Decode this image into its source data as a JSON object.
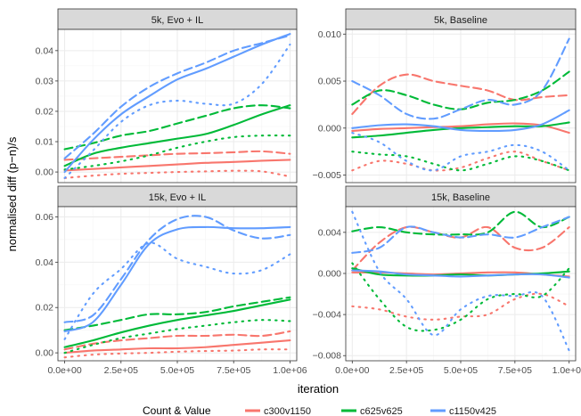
{
  "chart_data": {
    "type": "line",
    "xlabel": "iteration",
    "ylabel": "normalised diff (p−n)/s",
    "xlim": [
      -30000,
      1030000
    ],
    "x_ticks": [
      0,
      250000,
      500000,
      750000,
      1000000
    ],
    "x_tick_labels": [
      "0.0e+00",
      "2.5e+05",
      "5.0e+05",
      "7.5e+05",
      "1.0e+06"
    ],
    "x": [
      0,
      125000,
      250000,
      375000,
      500000,
      625000,
      750000,
      875000,
      1000000
    ],
    "legend": {
      "title": "Count & Value",
      "position": "bottom",
      "entries": [
        {
          "label": "c300v1150",
          "color": "#F8766D"
        },
        {
          "label": "c625v625",
          "color": "#00BA38"
        },
        {
          "label": "c1150v425",
          "color": "#619CFF"
        }
      ]
    },
    "line_styles": {
      "solid": "",
      "dashed": "9 5",
      "dotted": "1.5 6"
    },
    "panels": [
      {
        "title": "5k, Evo + IL",
        "ylim": [
          -0.0035,
          0.047
        ],
        "y_ticks": [
          0,
          0.01,
          0.02,
          0.03,
          0.04
        ],
        "y_tick_labels": [
          "0.00",
          "0.01",
          "0.02",
          "0.03",
          "0.04"
        ],
        "series": [
          {
            "group": "c300v1150",
            "style": "solid",
            "values": [
              0.0005,
              0.001,
              0.0015,
              0.002,
              0.0025,
              0.003,
              0.0033,
              0.0037,
              0.004
            ]
          },
          {
            "group": "c300v1150",
            "style": "dashed",
            "values": [
              0.004,
              0.0045,
              0.005,
              0.0055,
              0.006,
              0.0062,
              0.0065,
              0.0068,
              0.006
            ]
          },
          {
            "group": "c300v1150",
            "style": "dotted",
            "values": [
              -0.002,
              -0.0012,
              -0.0006,
              -0.0003,
              0.0,
              0.0002,
              0.0004,
              0.0002,
              -0.0015
            ]
          },
          {
            "group": "c625v625",
            "style": "solid",
            "values": [
              0.002,
              0.006,
              0.008,
              0.0095,
              0.011,
              0.0125,
              0.0155,
              0.019,
              0.022
            ]
          },
          {
            "group": "c625v625",
            "style": "dashed",
            "values": [
              0.0075,
              0.0095,
              0.012,
              0.0135,
              0.016,
              0.0185,
              0.021,
              0.022,
              0.021
            ]
          },
          {
            "group": "c625v625",
            "style": "dotted",
            "values": [
              0.0008,
              0.002,
              0.0035,
              0.0055,
              0.008,
              0.01,
              0.0115,
              0.012,
              0.012
            ]
          },
          {
            "group": "c1150v425",
            "style": "solid",
            "values": [
              0.0,
              0.0105,
              0.019,
              0.025,
              0.0305,
              0.034,
              0.038,
              0.042,
              0.0455
            ]
          },
          {
            "group": "c1150v425",
            "style": "dashed",
            "values": [
              0.0045,
              0.0125,
              0.0215,
              0.028,
              0.0325,
              0.036,
              0.04,
              0.0425,
              0.045
            ]
          },
          {
            "group": "c1150v425",
            "style": "dotted",
            "values": [
              -0.002,
              0.007,
              0.0165,
              0.022,
              0.0235,
              0.0225,
              0.0225,
              0.029,
              0.042
            ]
          }
        ]
      },
      {
        "title": "5k, Baseline",
        "ylim": [
          -0.0058,
          0.0105
        ],
        "y_ticks": [
          -0.005,
          0,
          0.005,
          0.01
        ],
        "y_tick_labels": [
          "−0.005",
          "0.000",
          "0.005",
          "0.010"
        ],
        "series": [
          {
            "group": "c300v1150",
            "style": "solid",
            "values": [
              -0.0003,
              -0.0001,
              0.0,
              0.0001,
              0.0002,
              0.0004,
              0.0005,
              0.0003,
              -0.0005
            ]
          },
          {
            "group": "c300v1150",
            "style": "dashed",
            "values": [
              0.0015,
              0.0045,
              0.0057,
              0.005,
              0.0045,
              0.004,
              0.003,
              0.0033,
              0.0035
            ]
          },
          {
            "group": "c300v1150",
            "style": "dotted",
            "values": [
              -0.0045,
              -0.0035,
              -0.0038,
              -0.0045,
              -0.0042,
              -0.0032,
              -0.0025,
              -0.0035,
              -0.0045
            ]
          },
          {
            "group": "c625v625",
            "style": "solid",
            "values": [
              -0.001,
              -0.0008,
              -0.0005,
              -0.0002,
              0.0,
              0.0001,
              0.0002,
              0.0002,
              0.0006
            ]
          },
          {
            "group": "c625v625",
            "style": "dashed",
            "values": [
              0.0025,
              0.004,
              0.0035,
              0.0025,
              0.002,
              0.0027,
              0.003,
              0.004,
              0.006
            ]
          },
          {
            "group": "c625v625",
            "style": "dotted",
            "values": [
              -0.0025,
              -0.0028,
              -0.003,
              -0.0038,
              -0.0045,
              -0.0038,
              -0.003,
              -0.0035,
              -0.0045
            ]
          },
          {
            "group": "c1150v425",
            "style": "solid",
            "values": [
              0.0,
              0.0003,
              0.0004,
              0.0002,
              -0.0002,
              -0.0003,
              -0.0002,
              0.0004,
              0.0019
            ]
          },
          {
            "group": "c1150v425",
            "style": "dashed",
            "values": [
              0.005,
              0.0035,
              0.0015,
              0.001,
              0.002,
              0.003,
              0.0025,
              0.004,
              0.0095
            ]
          },
          {
            "group": "c1150v425",
            "style": "dotted",
            "values": [
              -0.0005,
              -0.0015,
              -0.0035,
              -0.0045,
              -0.003,
              -0.0025,
              -0.0018,
              -0.0025,
              -0.0045
            ]
          }
        ]
      },
      {
        "title": "15k, Evo + IL",
        "ylim": [
          -0.0035,
          0.0645
        ],
        "y_ticks": [
          0,
          0.02,
          0.04,
          0.06
        ],
        "y_tick_labels": [
          "0.00",
          "0.02",
          "0.04",
          "0.06"
        ],
        "series": [
          {
            "group": "c300v1150",
            "style": "solid",
            "values": [
              0.0,
              0.001,
              0.0015,
              0.002,
              0.002,
              0.0025,
              0.0035,
              0.0045,
              0.0055
            ]
          },
          {
            "group": "c300v1150",
            "style": "dashed",
            "values": [
              0.0015,
              0.004,
              0.0055,
              0.0065,
              0.0075,
              0.0075,
              0.008,
              0.0075,
              0.0095
            ]
          },
          {
            "group": "c300v1150",
            "style": "dotted",
            "values": [
              -0.002,
              -0.0008,
              -0.0003,
              0.0,
              0.0005,
              0.0008,
              0.001,
              0.0015,
              0.0015
            ]
          },
          {
            "group": "c625v625",
            "style": "solid",
            "values": [
              0.0025,
              0.0055,
              0.009,
              0.012,
              0.0145,
              0.0165,
              0.0185,
              0.021,
              0.0235
            ]
          },
          {
            "group": "c625v625",
            "style": "dashed",
            "values": [
              0.01,
              0.012,
              0.0145,
              0.017,
              0.017,
              0.018,
              0.0205,
              0.0225,
              0.0245
            ]
          },
          {
            "group": "c625v625",
            "style": "dotted",
            "values": [
              0.0,
              0.0035,
              0.0065,
              0.0085,
              0.0105,
              0.012,
              0.0135,
              0.0145,
              0.014
            ]
          },
          {
            "group": "c1150v425",
            "style": "solid",
            "values": [
              0.0095,
              0.0135,
              0.03,
              0.048,
              0.0545,
              0.0555,
              0.055,
              0.055,
              0.0555
            ]
          },
          {
            "group": "c1150v425",
            "style": "dashed",
            "values": [
              0.0135,
              0.0165,
              0.0325,
              0.05,
              0.059,
              0.06,
              0.054,
              0.0505,
              0.052
            ]
          },
          {
            "group": "c1150v425",
            "style": "dotted",
            "values": [
              0.006,
              0.026,
              0.037,
              0.0485,
              0.0415,
              0.038,
              0.035,
              0.0365,
              0.0435
            ]
          }
        ]
      },
      {
        "title": "15k, Baseline",
        "ylim": [
          -0.0085,
          0.0065
        ],
        "y_ticks": [
          -0.008,
          -0.004,
          0,
          0.004
        ],
        "y_tick_labels": [
          "−0.008",
          "−0.004",
          "0.000",
          "0.004"
        ],
        "series": [
          {
            "group": "c300v1150",
            "style": "solid",
            "values": [
              0.0001,
              0.0001,
              0.0,
              -0.0001,
              0.0,
              0.0001,
              0.0001,
              -0.0001,
              -0.0003
            ]
          },
          {
            "group": "c300v1150",
            "style": "dashed",
            "values": [
              0.0003,
              0.003,
              0.0045,
              0.004,
              0.0035,
              0.0045,
              0.0025,
              0.0025,
              0.0045
            ]
          },
          {
            "group": "c300v1150",
            "style": "dotted",
            "values": [
              -0.0032,
              -0.0035,
              -0.0042,
              -0.0045,
              -0.0042,
              -0.004,
              -0.0025,
              -0.002,
              -0.0032
            ]
          },
          {
            "group": "c625v625",
            "style": "solid",
            "values": [
              0.0005,
              -0.0001,
              -0.0002,
              -0.0002,
              -0.0001,
              -0.0002,
              -0.0001,
              0.0,
              0.0002
            ]
          },
          {
            "group": "c625v625",
            "style": "dashed",
            "values": [
              0.0041,
              0.0045,
              0.004,
              0.0038,
              0.0038,
              0.004,
              0.006,
              0.0045,
              0.0055
            ]
          },
          {
            "group": "c625v625",
            "style": "dotted",
            "values": [
              0.001,
              -0.0025,
              -0.0052,
              -0.0055,
              -0.0045,
              -0.0025,
              -0.002,
              -0.0022,
              0.0005
            ]
          },
          {
            "group": "c1150v425",
            "style": "solid",
            "values": [
              0.0003,
              0.0002,
              -0.0001,
              -0.0002,
              -0.0003,
              -0.0002,
              -0.0001,
              -0.0001,
              -0.0004
            ]
          },
          {
            "group": "c1150v425",
            "style": "dashed",
            "values": [
              0.002,
              0.0025,
              0.0045,
              0.004,
              0.0035,
              0.0038,
              0.0035,
              0.0045,
              0.0055
            ]
          },
          {
            "group": "c1150v425",
            "style": "dotted",
            "values": [
              0.006,
              0.0002,
              -0.0025,
              -0.006,
              -0.0035,
              -0.0022,
              -0.0022,
              -0.0022,
              -0.0075
            ]
          }
        ]
      }
    ]
  }
}
